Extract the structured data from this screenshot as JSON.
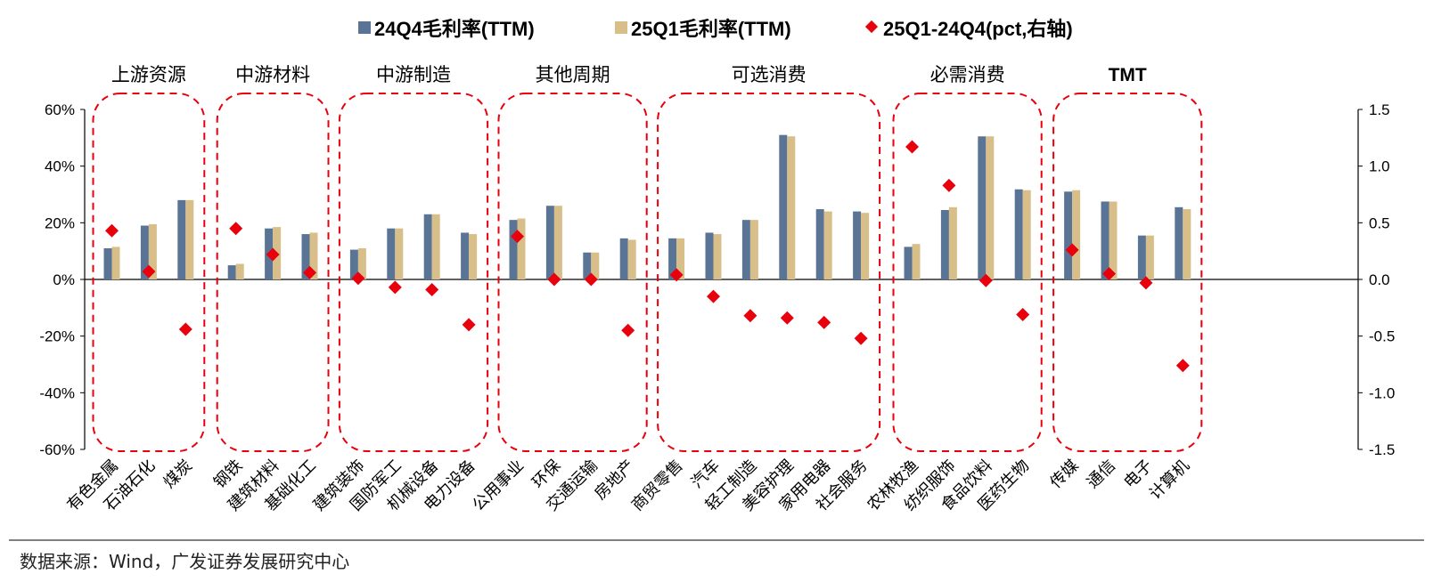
{
  "chart_data": {
    "type": "bar",
    "categories": [
      "有色金属",
      "石油石化",
      "煤炭",
      "钢铁",
      "建筑材料",
      "基础化工",
      "建筑装饰",
      "国防军工",
      "机械设备",
      "电力设备",
      "公用事业",
      "环保",
      "交通运输",
      "房地产",
      "商贸零售",
      "汽车",
      "轻工制造",
      "美容护理",
      "家用电器",
      "社会服务",
      "农林牧渔",
      "纺织服饰",
      "食品饮料",
      "医药生物",
      "传媒",
      "通信",
      "电子",
      "计算机"
    ],
    "groups": [
      {
        "label": "上游资源",
        "count": 3
      },
      {
        "label": "中游材料",
        "count": 3
      },
      {
        "label": "中游制造",
        "count": 4
      },
      {
        "label": "其他周期",
        "count": 4
      },
      {
        "label": "可选消费",
        "count": 6
      },
      {
        "label": "必需消费",
        "count": 4
      },
      {
        "label": "TMT",
        "count": 4
      }
    ],
    "series": [
      {
        "name": "24Q4毛利率(TTM)",
        "axis": "left",
        "color": "#5a7496",
        "values": [
          11.0,
          19.0,
          28.0,
          5.0,
          18.0,
          16.0,
          10.5,
          18.0,
          23.0,
          16.5,
          21.0,
          26.0,
          9.5,
          14.5,
          14.5,
          16.5,
          21.0,
          51.0,
          24.8,
          24.0,
          11.5,
          24.5,
          50.5,
          31.8,
          31.0,
          27.5,
          15.5,
          25.5
        ]
      },
      {
        "name": "25Q1毛利率(TTM)",
        "axis": "left",
        "color": "#d8bf8a",
        "values": [
          11.5,
          19.5,
          28.0,
          5.5,
          18.5,
          16.5,
          11.0,
          18.0,
          23.0,
          16.0,
          21.5,
          26.0,
          9.5,
          14.0,
          14.5,
          16.0,
          21.0,
          50.5,
          24.0,
          23.5,
          12.5,
          25.5,
          50.5,
          31.5,
          31.5,
          27.5,
          15.5,
          24.8
        ]
      },
      {
        "name": "25Q1-24Q4(pct,右轴)",
        "axis": "right",
        "color": "#e8000d",
        "values": [
          0.43,
          0.07,
          -0.44,
          0.45,
          0.22,
          0.06,
          0.01,
          -0.07,
          -0.09,
          -0.4,
          0.38,
          0.0,
          0.0,
          -0.45,
          0.04,
          -0.15,
          -0.32,
          -0.34,
          -0.38,
          -0.52,
          1.17,
          0.83,
          -0.01,
          -0.31,
          0.26,
          0.05,
          -0.03,
          -0.76
        ]
      }
    ],
    "yLeft": {
      "ylim": [
        -60,
        60
      ],
      "ticks": [
        -60,
        -40,
        -20,
        0,
        20,
        40,
        60
      ],
      "format": "percent"
    },
    "yRight": {
      "ylim": [
        -1.5,
        1.5
      ],
      "ticks": [
        -1.5,
        -1.0,
        -0.5,
        0.0,
        0.5,
        1.0,
        1.5
      ]
    },
    "legend_position": "top"
  },
  "source_note": "数据来源：Wind，广发证券发展研究中心"
}
